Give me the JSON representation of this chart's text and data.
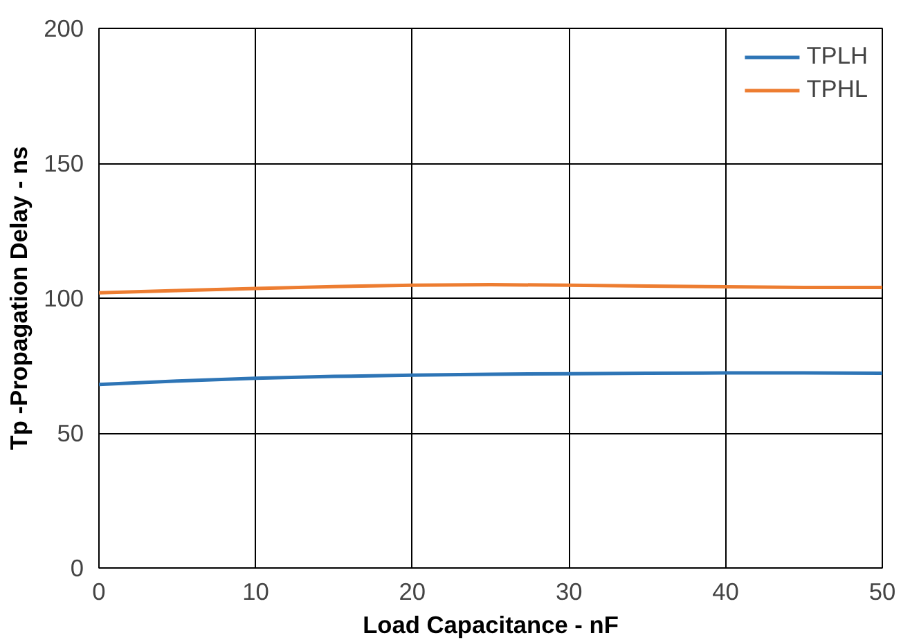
{
  "chart_data": {
    "type": "line",
    "xlabel": "Load Capacitance - nF",
    "ylabel": "Tp -Propagation Delay - ns",
    "xlim": [
      0,
      50
    ],
    "ylim": [
      0,
      200
    ],
    "xticks": [
      0,
      10,
      20,
      30,
      40,
      50
    ],
    "yticks": [
      0,
      50,
      100,
      150,
      200
    ],
    "grid": true,
    "legend": "top right",
    "marker": "none",
    "line_style": "solid",
    "x": [
      0,
      5,
      10,
      15,
      20,
      25,
      30,
      35,
      40,
      45,
      50
    ],
    "series": [
      {
        "name": "TPLH",
        "color": "#2e75b6",
        "values": [
          68,
          69.3,
          70.3,
          71,
          71.5,
          71.8,
          72,
          72.2,
          72.3,
          72.3,
          72.2
        ]
      },
      {
        "name": "TPHL",
        "color": "#ed7d31",
        "values": [
          102,
          102.8,
          103.6,
          104.3,
          104.8,
          105,
          104.8,
          104.5,
          104.2,
          104,
          104
        ]
      }
    ]
  }
}
